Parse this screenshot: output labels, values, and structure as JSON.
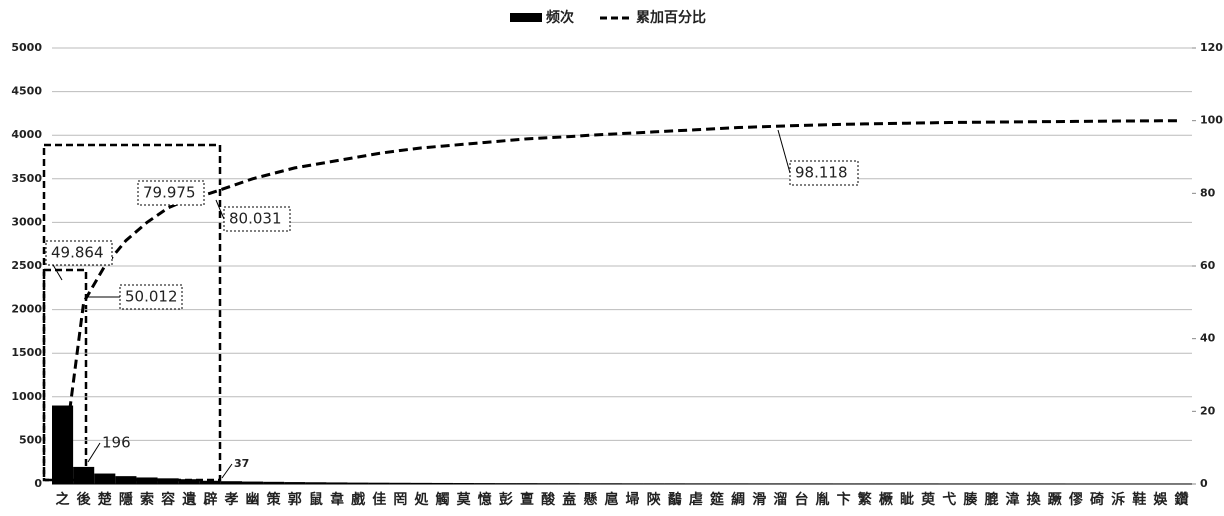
{
  "chart_data": {
    "type": "pareto",
    "categories": [
      "之",
      "後",
      "楚",
      "隱",
      "索",
      "容",
      "遺",
      "辟",
      "孝",
      "幽",
      "策",
      "郭",
      "鼠",
      "韋",
      "戲",
      "佳",
      "罔",
      "処",
      "觸",
      "莫",
      "憶",
      "彭",
      "亶",
      "酸",
      "盍",
      "懸",
      "扈",
      "埽",
      "陝",
      "鷸",
      "虐",
      "筵",
      "綢",
      "滑",
      "溜",
      "台",
      "胤",
      "卞",
      "繁",
      "橛",
      "眦",
      "萸",
      "弋",
      "腠",
      "膍",
      "湋",
      "換",
      "蹶",
      "僇",
      "碕",
      "泝",
      "鞋",
      "娛",
      "鑽"
    ],
    "series": [
      {
        "name": "频次",
        "color": "#000000",
        "values": [
          900,
          196,
          120,
          90,
          75,
          65,
          55,
          37,
          32,
          28,
          25,
          22,
          20,
          18,
          16,
          15,
          14,
          13,
          12,
          11,
          10,
          9,
          9,
          8,
          8,
          7,
          7,
          6,
          6,
          6,
          5,
          5,
          5,
          4,
          4,
          4,
          4,
          3,
          3,
          3,
          3,
          3,
          2,
          2,
          2,
          2,
          2,
          2,
          1,
          1,
          1,
          1,
          1,
          1
        ]
      },
      {
        "name": "累加百分比",
        "color": "#000000",
        "axis": "y2",
        "values": [
          5,
          50.012,
          60,
          67,
          72,
          76,
          78.5,
          80.031,
          82,
          84,
          85.5,
          87,
          88,
          89,
          90,
          91,
          91.8,
          92.5,
          93,
          93.5,
          94,
          94.5,
          95,
          95.3,
          95.6,
          96,
          96.3,
          96.6,
          96.9,
          97.2,
          97.5,
          97.8,
          98.118,
          98.3,
          98.5,
          98.7,
          98.85,
          99,
          99.1,
          99.2,
          99.3,
          99.4,
          99.5,
          99.55,
          99.6,
          99.65,
          99.7,
          99.75,
          99.8,
          99.85,
          99.9,
          99.93,
          99.96,
          100
        ]
      }
    ],
    "annotations": [
      "49.864",
      "50.012",
      "79.975",
      "80.031",
      "98.118",
      "196",
      "37"
    ],
    "ylim": [
      0,
      5000
    ],
    "yticks": [
      0,
      500,
      1000,
      1500,
      2000,
      2500,
      3000,
      3500,
      4000,
      4500,
      5000
    ],
    "y2lim": [
      0,
      120
    ],
    "y2ticks": [
      0,
      20,
      40,
      60,
      80,
      100,
      120
    ],
    "grid": true
  }
}
